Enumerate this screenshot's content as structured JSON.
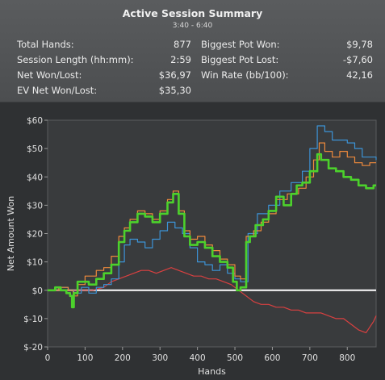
{
  "summary": {
    "title": "Active Session Summary",
    "time_range": "3:40 - 6:40",
    "stats_left": [
      {
        "label": "Total Hands:",
        "value": "877"
      },
      {
        "label": "Session Length (hh:mm):",
        "value": "2:59"
      },
      {
        "label": "Net Won/Lost:",
        "value": "$36,97"
      },
      {
        "label": "EV Net Won/Lost:",
        "value": "$35,30"
      }
    ],
    "stats_right": [
      {
        "label": "Biggest Pot Won:",
        "value": "$9,78"
      },
      {
        "label": "Biggest Pot Lost:",
        "value": "-$7,60"
      },
      {
        "label": "Win Rate (bb/100):",
        "value": "42,16"
      }
    ]
  },
  "chart_data": {
    "type": "line",
    "xlabel": "Hands",
    "ylabel": "Net Amount Won",
    "xlim": [
      0,
      877
    ],
    "ylim": [
      -20,
      60
    ],
    "x_ticks": [
      0,
      100,
      200,
      300,
      400,
      500,
      600,
      700,
      800
    ],
    "x_tick_labels": [
      "0",
      "100",
      "200",
      "300",
      "400",
      "500",
      "600",
      "700",
      "800"
    ],
    "y_ticks": [
      -20,
      -10,
      0,
      10,
      20,
      30,
      40,
      50,
      60
    ],
    "y_tick_labels": [
      "$-20",
      "$-10",
      "$0",
      "$10",
      "$20",
      "$30",
      "$40",
      "$50",
      "$60"
    ],
    "grid": false,
    "zero_line": true,
    "series": [
      {
        "color": "#4cd12c",
        "step": true,
        "x": [
          0,
          20,
          35,
          50,
          60,
          65,
          70,
          80,
          95,
          110,
          130,
          150,
          170,
          190,
          205,
          220,
          240,
          260,
          280,
          300,
          320,
          335,
          350,
          365,
          380,
          400,
          420,
          440,
          460,
          480,
          495,
          505,
          515,
          530,
          540,
          555,
          575,
          590,
          610,
          630,
          650,
          665,
          680,
          700,
          720,
          730,
          750,
          770,
          790,
          810,
          830,
          850,
          870,
          877
        ],
        "y": [
          0,
          1,
          0,
          -1,
          -2,
          -6,
          -1,
          3,
          3,
          2,
          4,
          6,
          9,
          17,
          21,
          24,
          27,
          26,
          24,
          27,
          31,
          34,
          27,
          19,
          16,
          17,
          15,
          12,
          10,
          8,
          3,
          0,
          1,
          17,
          19,
          23,
          25,
          28,
          33,
          30,
          34,
          37,
          38,
          42,
          48,
          46,
          43,
          42,
          40,
          39,
          37,
          36,
          37,
          37
        ]
      },
      {
        "color": "#ee8a3c",
        "step": true,
        "x": [
          0,
          30,
          55,
          68,
          80,
          100,
          130,
          150,
          170,
          190,
          205,
          220,
          240,
          260,
          280,
          300,
          320,
          335,
          350,
          365,
          380,
          400,
          420,
          440,
          460,
          480,
          500,
          515,
          530,
          550,
          570,
          590,
          610,
          640,
          670,
          690,
          710,
          725,
          740,
          760,
          780,
          800,
          820,
          840,
          860,
          877
        ],
        "y": [
          0,
          1,
          0,
          -2,
          2,
          5,
          7,
          8,
          12,
          19,
          22,
          25,
          28,
          27,
          25,
          28,
          32,
          35,
          28,
          21,
          18,
          19,
          16,
          14,
          11,
          9,
          5,
          4,
          19,
          21,
          24,
          27,
          32,
          34,
          36,
          40,
          46,
          52,
          49,
          47,
          49,
          47,
          45,
          44,
          45,
          45
        ]
      },
      {
        "color": "#3c93d6",
        "step": true,
        "x": [
          0,
          30,
          55,
          70,
          90,
          110,
          130,
          150,
          170,
          190,
          205,
          220,
          240,
          260,
          280,
          300,
          320,
          340,
          360,
          380,
          400,
          420,
          440,
          460,
          480,
          500,
          515,
          535,
          560,
          590,
          620,
          650,
          680,
          700,
          720,
          740,
          760,
          780,
          800,
          820,
          840,
          877
        ],
        "y": [
          0,
          1,
          0,
          -1,
          1,
          -1,
          1,
          2,
          4,
          10,
          16,
          18,
          17,
          15,
          18,
          21,
          24,
          22,
          20,
          15,
          10,
          9,
          7,
          9,
          6,
          4,
          3,
          20,
          27,
          30,
          35,
          38,
          42,
          50,
          58,
          56,
          53,
          53,
          52,
          50,
          47,
          46
        ]
      },
      {
        "color": "#d94040",
        "step": false,
        "x": [
          0,
          30,
          60,
          90,
          120,
          150,
          170,
          190,
          210,
          230,
          250,
          270,
          290,
          310,
          330,
          350,
          370,
          390,
          410,
          430,
          450,
          470,
          490,
          510,
          530,
          550,
          570,
          590,
          610,
          630,
          650,
          670,
          690,
          710,
          730,
          750,
          770,
          790,
          810,
          830,
          850,
          870,
          877
        ],
        "y": [
          0,
          0,
          0,
          0,
          0,
          1,
          3,
          4,
          5,
          6,
          7,
          7,
          6,
          7,
          8,
          7,
          6,
          5,
          5,
          4,
          4,
          3,
          2,
          0,
          -2,
          -4,
          -5,
          -5,
          -6,
          -6,
          -7,
          -7,
          -8,
          -8,
          -8,
          -9,
          -10,
          -10,
          -12,
          -14,
          -15,
          -11,
          -9
        ]
      }
    ]
  }
}
